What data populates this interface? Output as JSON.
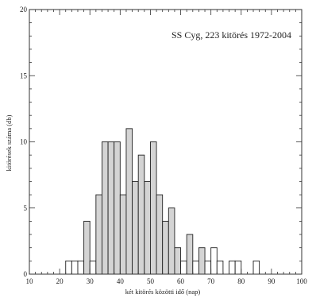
{
  "chart_data": {
    "type": "bar",
    "title": "SS Cyg, 223 kitörés 1972-2004",
    "xlabel": "két kitörés közötti idő (nap)",
    "ylabel": "kitörések száma (db)",
    "xlim": [
      10,
      100
    ],
    "ylim": [
      0,
      20
    ],
    "xticks": [
      10,
      20,
      30,
      40,
      50,
      60,
      70,
      80,
      90,
      100
    ],
    "yticks": [
      0,
      5,
      10,
      15,
      20
    ],
    "bin_width": 2,
    "grid": false,
    "legend": "none",
    "bars": [
      {
        "x": 23,
        "value": 1,
        "fill": "white"
      },
      {
        "x": 25,
        "value": 1,
        "fill": "white"
      },
      {
        "x": 27,
        "value": 1,
        "fill": "white"
      },
      {
        "x": 29,
        "value": 4,
        "fill": "gray"
      },
      {
        "x": 31,
        "value": 1,
        "fill": "white"
      },
      {
        "x": 33,
        "value": 6,
        "fill": "gray"
      },
      {
        "x": 35,
        "value": 10,
        "fill": "gray"
      },
      {
        "x": 37,
        "value": 10,
        "fill": "gray"
      },
      {
        "x": 39,
        "value": 10,
        "fill": "gray"
      },
      {
        "x": 41,
        "value": 6,
        "fill": "gray"
      },
      {
        "x": 43,
        "value": 11,
        "fill": "gray"
      },
      {
        "x": 45,
        "value": 7,
        "fill": "gray"
      },
      {
        "x": 47,
        "value": 9,
        "fill": "gray"
      },
      {
        "x": 49,
        "value": 7,
        "fill": "gray"
      },
      {
        "x": 51,
        "value": 10,
        "fill": "gray"
      },
      {
        "x": 53,
        "value": 6,
        "fill": "gray"
      },
      {
        "x": 55,
        "value": 4,
        "fill": "gray"
      },
      {
        "x": 57,
        "value": 5,
        "fill": "gray"
      },
      {
        "x": 59,
        "value": 2,
        "fill": "gray"
      },
      {
        "x": 61,
        "value": 1,
        "fill": "white"
      },
      {
        "x": 63,
        "value": 3,
        "fill": "gray"
      },
      {
        "x": 65,
        "value": 1,
        "fill": "white"
      },
      {
        "x": 67,
        "value": 2,
        "fill": "gray"
      },
      {
        "x": 69,
        "value": 1,
        "fill": "white"
      },
      {
        "x": 71,
        "value": 2,
        "fill": "white"
      },
      {
        "x": 73,
        "value": 1,
        "fill": "white"
      },
      {
        "x": 77,
        "value": 1,
        "fill": "white"
      },
      {
        "x": 79,
        "value": 1,
        "fill": "white"
      },
      {
        "x": 85,
        "value": 1,
        "fill": "white"
      }
    ]
  },
  "colors": {
    "axis": "#333333",
    "bar_stroke": "#222222",
    "bar_gray": "#d4d4d4",
    "bar_white": "#ffffff"
  }
}
